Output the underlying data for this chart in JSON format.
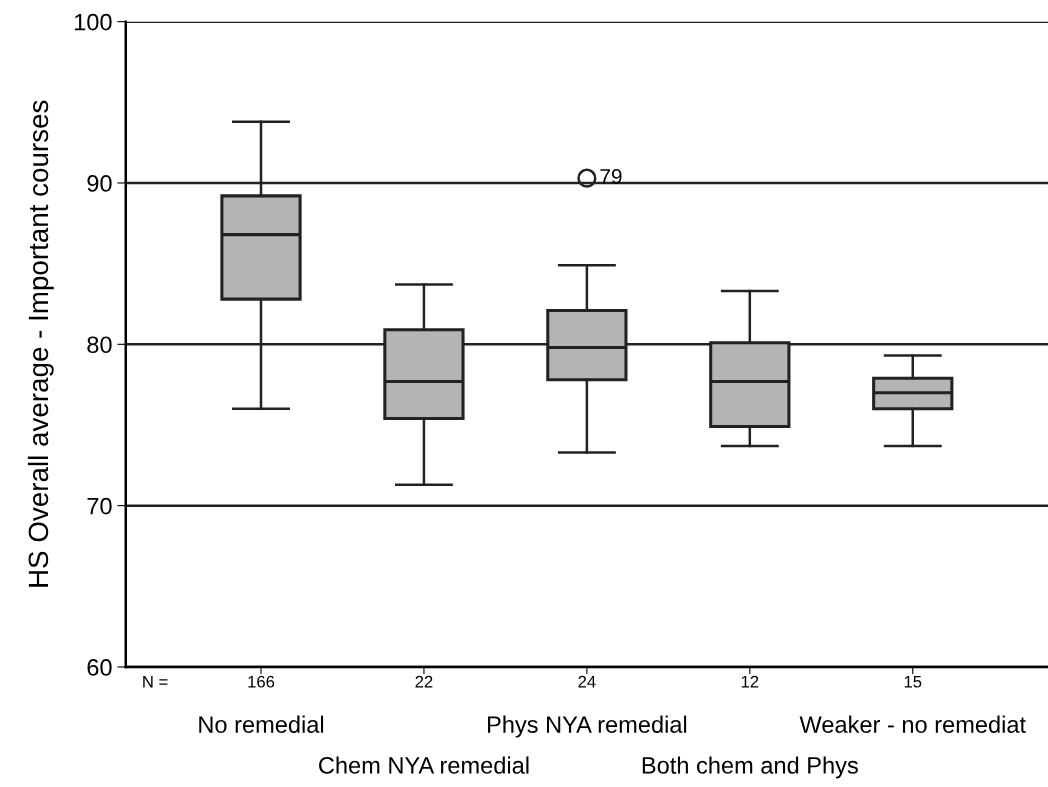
{
  "chart_data": {
    "type": "box",
    "ylabel": "HS Overall average - Important courses",
    "categories": [
      "No remedial",
      "Chem NYA remedial",
      "Phys NYA remedial",
      "Both chem and Phys",
      "Weaker - no remediat"
    ],
    "color": "#b4b4b4",
    "boxes": [
      {
        "low": 76.0,
        "q1": 82.8,
        "median": 86.8,
        "q3": 89.2,
        "high": 93.8
      },
      {
        "low": 71.3,
        "q1": 75.4,
        "median": 77.7,
        "q3": 80.9,
        "high": 83.7
      },
      {
        "low": 73.3,
        "q1": 77.8,
        "median": 79.8,
        "q3": 82.1,
        "high": 84.9,
        "outliers": [
          90.3
        ]
      },
      {
        "low": 73.7,
        "q1": 74.9,
        "median": 77.7,
        "q3": 80.1,
        "high": 83.3
      },
      {
        "low": 73.7,
        "q1": 76.0,
        "median": 77.0,
        "q3": 77.9,
        "high": 79.3
      }
    ],
    "ylim": [
      60,
      100
    ],
    "yticks": [
      60,
      70,
      80,
      90,
      100
    ],
    "grid": "y",
    "annotations": [
      "N =",
      "166",
      "22",
      "24",
      "12",
      "15",
      "79"
    ]
  }
}
